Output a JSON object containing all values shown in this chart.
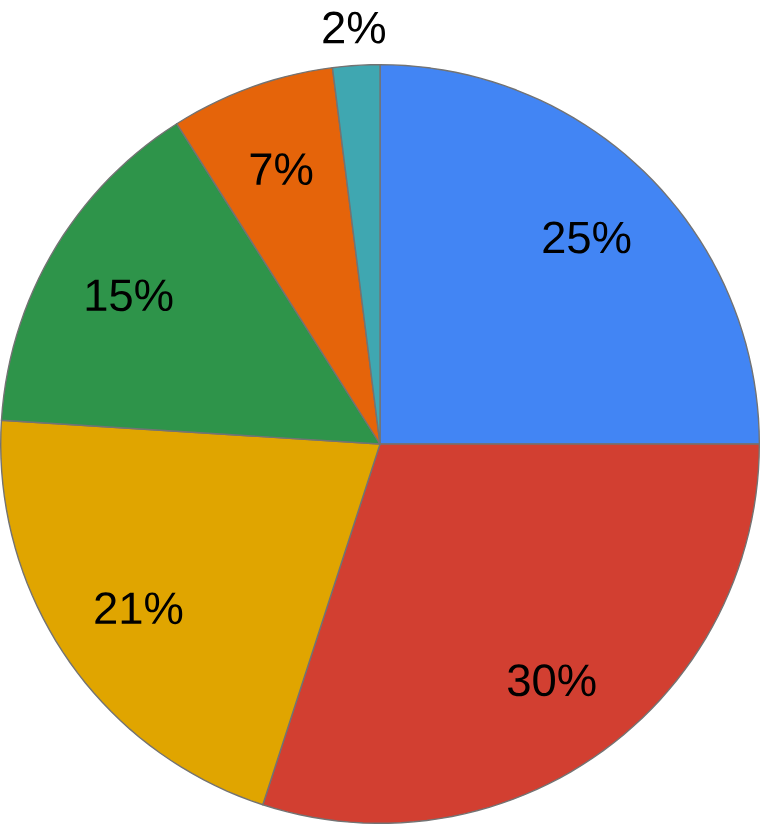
{
  "chart_data": {
    "type": "pie",
    "categories": [
      null,
      null,
      null,
      null,
      null,
      null
    ],
    "values": [
      25,
      30,
      21,
      15,
      7,
      2
    ],
    "value_labels": [
      "25%",
      "30%",
      "21%",
      "15%",
      "7%",
      "2%"
    ],
    "colors": [
      "#4285f4",
      "#d23f31",
      "#e0a500",
      "#2e944a",
      "#e5640a",
      "#3fa7b1"
    ]
  }
}
